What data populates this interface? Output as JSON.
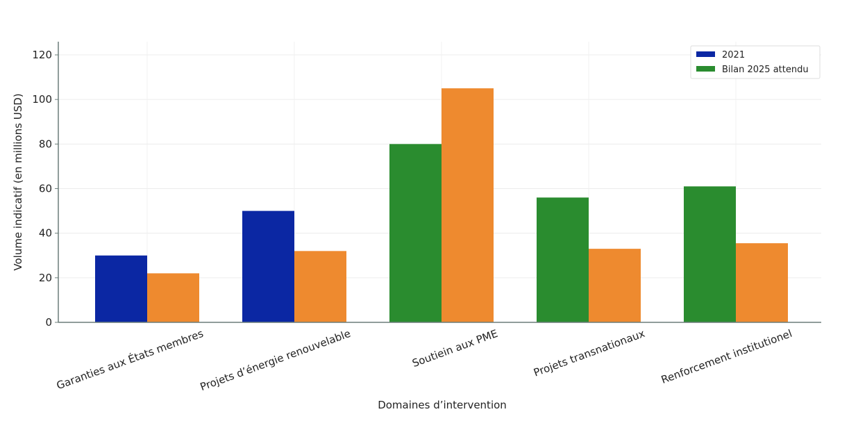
{
  "chart_data": {
    "type": "bar",
    "title": "",
    "xlabel": "Domaines d’intervention",
    "ylabel": "Volume indicatif (en millions USD)",
    "ylim": [
      0,
      120
    ],
    "yticks": [
      0,
      20,
      40,
      60,
      80,
      100,
      120
    ],
    "grid": true,
    "legend_position": "top-right",
    "categories": [
      "Garanties aux États membres",
      "Projets d’énergie renouvelable",
      "Soutiein aux PME",
      "Projets transnationaux",
      "Renforcement institutionel"
    ],
    "series": [
      {
        "values": [
          30,
          50,
          80,
          56,
          61
        ],
        "colors": [
          "#0b27a3",
          "#0b27a3",
          "#2a8c2f",
          "#2a8c2f",
          "#2a8c2f"
        ]
      },
      {
        "values": [
          22,
          32,
          105,
          33,
          35.5
        ],
        "colors": [
          "#ee8a2f",
          "#ee8a2f",
          "#ee8a2f",
          "#ee8a2f",
          "#ee8a2f"
        ]
      }
    ],
    "legend": [
      {
        "label": "2021",
        "color": "#0b27a3"
      },
      {
        "label": "Bilan 2025 attendu",
        "color": "#2a8c2f"
      }
    ]
  }
}
